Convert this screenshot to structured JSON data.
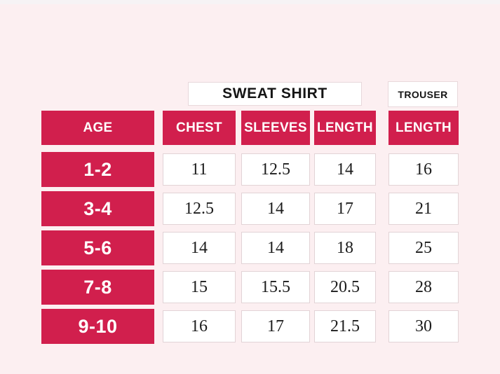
{
  "page": {
    "background_color": "#fceff1",
    "accent_color": "#d11f4d"
  },
  "titles": {
    "sweatshirt": "SWEAT SHIRT",
    "trouser": "TROUSER"
  },
  "table": {
    "headers": [
      "AGE",
      "CHEST",
      "SLEEVES",
      "LENGTH",
      "LENGTH"
    ],
    "rows": [
      {
        "age": "1-2",
        "chest": "11",
        "sleeves": "12.5",
        "length": "14",
        "trouser_length": "16"
      },
      {
        "age": "3-4",
        "chest": "12.5",
        "sleeves": "14",
        "length": "17",
        "trouser_length": "21"
      },
      {
        "age": "5-6",
        "chest": "14",
        "sleeves": "14",
        "length": "18",
        "trouser_length": "25"
      },
      {
        "age": "7-8",
        "chest": "15",
        "sleeves": "15.5",
        "length": "20.5",
        "trouser_length": "28"
      },
      {
        "age": "9-10",
        "chest": "16",
        "sleeves": "17",
        "length": "21.5",
        "trouser_length": "30"
      }
    ]
  },
  "chart_data": {
    "type": "table",
    "title": "SWEAT SHIRT",
    "secondary_title": "TROUSER",
    "columns": [
      "AGE",
      "CHEST",
      "SLEEVES",
      "LENGTH",
      "LENGTH (TROUSER)"
    ],
    "rows": [
      [
        "1-2",
        11,
        12.5,
        14,
        16
      ],
      [
        "3-4",
        12.5,
        14,
        17,
        21
      ],
      [
        "5-6",
        14,
        14,
        18,
        25
      ],
      [
        "7-8",
        15,
        15.5,
        20.5,
        28
      ],
      [
        "9-10",
        16,
        17,
        21.5,
        30
      ]
    ],
    "layout_hints": {
      "header_background": "#d11f4d",
      "header_text_color": "#ffffff",
      "cell_background": "#ffffff",
      "page_background": "#fceff1",
      "sweatshirt_group_columns": [
        "CHEST",
        "SLEEVES",
        "LENGTH"
      ],
      "trouser_group_columns": [
        "LENGTH (TROUSER)"
      ]
    }
  }
}
